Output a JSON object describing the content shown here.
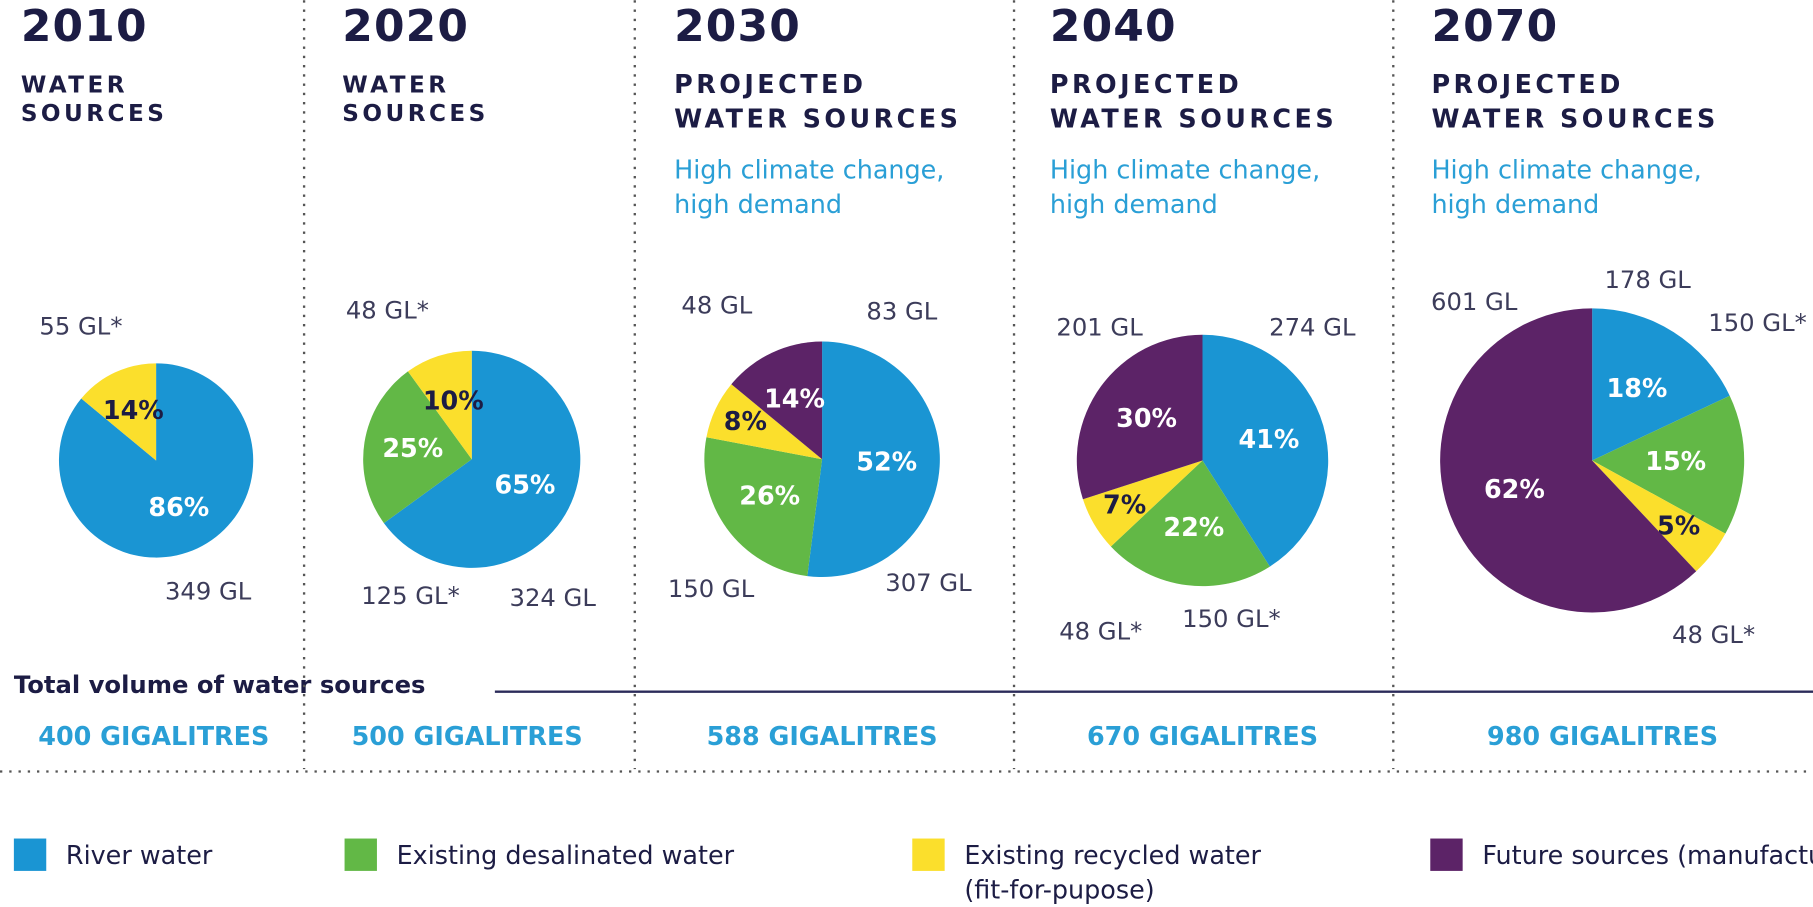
{
  "chart_data": [
    {
      "type": "pie",
      "title": "2010",
      "subtitle": [
        "WATER",
        "SOURCES"
      ],
      "values": [
        86,
        null,
        14,
        null
      ],
      "volume_labels": [
        "349 GL",
        null,
        "55 GL*",
        null
      ],
      "total": {
        "value": 400,
        "label": "400 GIGALITRES"
      }
    },
    {
      "type": "pie",
      "title": "2020",
      "subtitle": [
        "WATER",
        "SOURCES"
      ],
      "values": [
        65,
        25,
        10,
        null
      ],
      "volume_labels": [
        "324 GL",
        "125 GL*",
        "48 GL*",
        null
      ],
      "total": {
        "value": 500,
        "label": "500 GIGALITRES"
      }
    },
    {
      "type": "pie",
      "title": "2030",
      "subtitle": [
        "PROJECTED",
        "WATER SOURCES"
      ],
      "note": [
        "High climate change,",
        "high demand"
      ],
      "values": [
        52,
        26,
        8,
        14
      ],
      "volume_labels": [
        "307 GL",
        "150 GL",
        "48 GL",
        "83 GL"
      ],
      "total": {
        "value": 588,
        "label": "588 GIGALITRES"
      }
    },
    {
      "type": "pie",
      "title": "2040",
      "subtitle": [
        "PROJECTED",
        "WATER SOURCES"
      ],
      "note": [
        "High climate change,",
        "high demand"
      ],
      "values": [
        41,
        22,
        7,
        30
      ],
      "volume_labels": [
        "274 GL",
        "150 GL*",
        "48 GL*",
        "201 GL"
      ],
      "total": {
        "value": 670,
        "label": "670 GIGALITRES"
      }
    },
    {
      "type": "pie",
      "title": "2070",
      "subtitle": [
        "PROJECTED",
        "WATER SOURCES"
      ],
      "note": [
        "High climate change,",
        "high demand"
      ],
      "values": [
        18,
        15,
        5,
        62
      ],
      "volume_labels": [
        "178 GL",
        "150 GL*",
        "48 GL*",
        "601 GL"
      ],
      "total": {
        "value": 980,
        "label": "980 GIGALITRES"
      }
    }
  ],
  "total_heading": "Total volume of water sources",
  "legend": [
    {
      "name": [
        "River water"
      ],
      "color": "#1a95d3"
    },
    {
      "name": [
        "Existing desalinated water"
      ],
      "color": "#62b846"
    },
    {
      "name": [
        "Existing recycled water",
        "(fit-for-pupose)"
      ],
      "color": "#fbdf2c"
    },
    {
      "name": [
        "Future sources (manufactured water)"
      ],
      "color": "#5c2367"
    }
  ]
}
